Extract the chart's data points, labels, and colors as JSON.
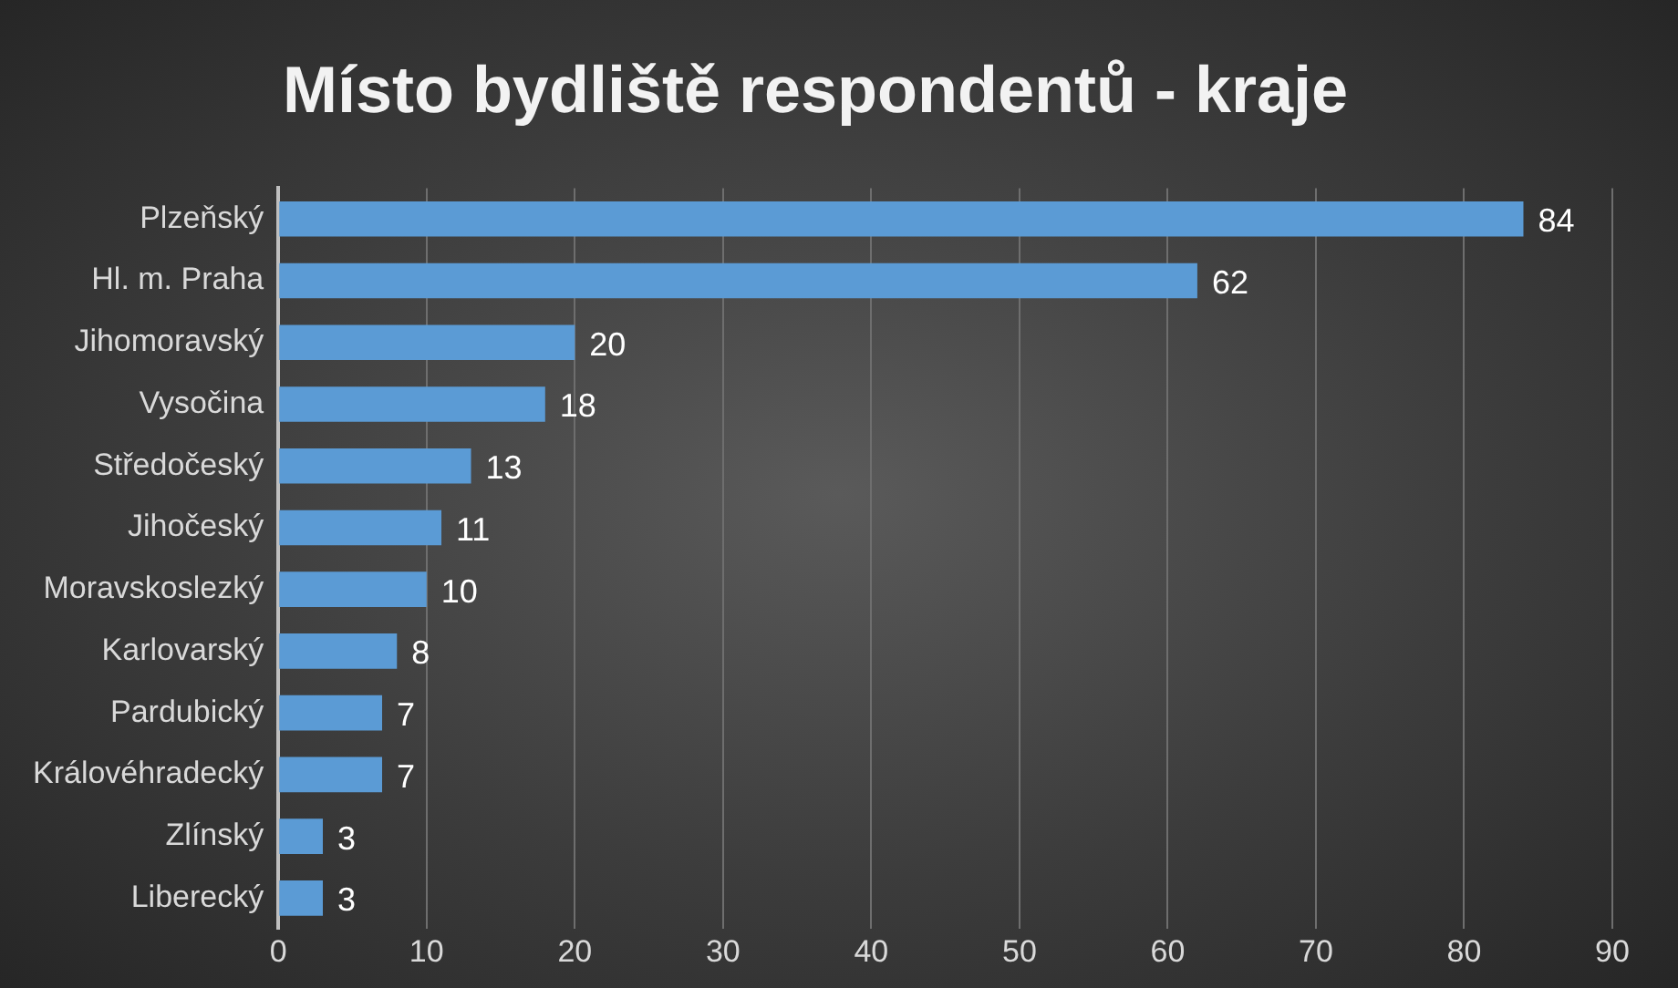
{
  "chart_data": {
    "type": "bar",
    "orientation": "horizontal",
    "title": "Místo bydliště respondentů - kraje",
    "categories": [
      "Plzeňský",
      "Hl. m. Praha",
      "Jihomoravský",
      "Vysočina",
      "Středočeský",
      "Jihočeský",
      "Moravskoslezký",
      "Karlovarský",
      "Pardubický",
      "Královéhradecký",
      "Zlínský",
      "Liberecký"
    ],
    "values": [
      84,
      62,
      20,
      18,
      13,
      11,
      10,
      8,
      7,
      7,
      3,
      3
    ],
    "color": "#5b9bd5",
    "xlim": [
      0,
      90
    ],
    "xticks": [
      0,
      10,
      20,
      30,
      40,
      50,
      60,
      70,
      80,
      90
    ],
    "grid": "x",
    "data_labels": true,
    "legend": false
  }
}
